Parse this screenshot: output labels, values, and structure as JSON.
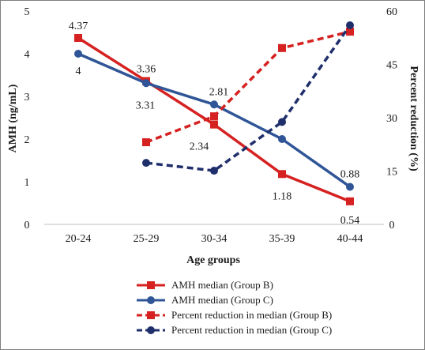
{
  "chart_data": {
    "type": "line",
    "categories": [
      "20-24",
      "25-29",
      "30-34",
      "35-39",
      "40-44"
    ],
    "xlabel": "Age groups",
    "ylabel_left": "AMH (ng/mL)",
    "ylabel_right": "Percent reduction (%)",
    "ylim_left": [
      0,
      5
    ],
    "ylim_right": [
      0,
      60
    ],
    "yticks_left": [
      "0",
      "1",
      "2",
      "3",
      "4",
      "5"
    ],
    "yticks_right": [
      "0",
      "15",
      "30",
      "45",
      "60"
    ],
    "grid": false,
    "legend_position": "bottom",
    "series": [
      {
        "name": "AMH median (Group B)",
        "axis": "left",
        "color": "#d62121",
        "line": "solid",
        "marker": "square",
        "values": [
          4.37,
          3.36,
          2.34,
          1.18,
          0.54
        ],
        "labels": [
          "4.37",
          "3.36",
          "2.34",
          "1.18",
          "0.54"
        ]
      },
      {
        "name": "AMH median (Group C)",
        "axis": "left",
        "color": "#2f5597",
        "line": "solid",
        "marker": "circle",
        "values": [
          4,
          3.31,
          2.81,
          2.0,
          0.88
        ],
        "labels": [
          "4",
          "3.31",
          "2.81",
          "",
          "0.88"
        ]
      },
      {
        "name": "Percent reduction in median (Group B)",
        "axis": "right",
        "color": "#d62121",
        "line": "dashed",
        "marker": "square",
        "values": [
          null,
          23.1,
          30.4,
          49.6,
          54.2
        ]
      },
      {
        "name": "Percent reduction in median (Group C)",
        "axis": "right",
        "color": "#1f2f6b",
        "line": "dashed",
        "marker": "circle",
        "values": [
          null,
          17.3,
          15.1,
          28.8,
          56.0
        ]
      }
    ]
  }
}
